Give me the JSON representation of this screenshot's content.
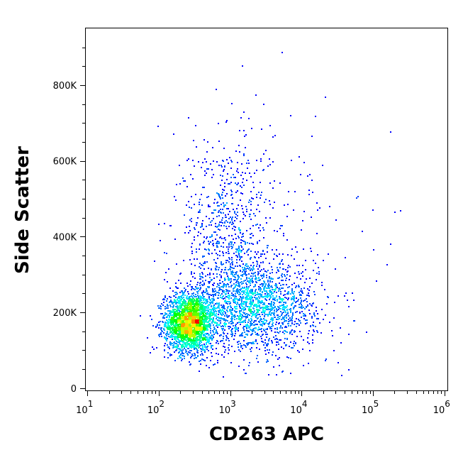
{
  "chart_data": {
    "type": "scatter",
    "style": "density-colored dot plot",
    "xlabel": "CD263 APC",
    "ylabel": "Side Scatter",
    "x_scale": "log",
    "xlim": [
      9.5,
      1100000
    ],
    "x_ticks": [
      {
        "value": 10,
        "base": "10",
        "exp": "1"
      },
      {
        "value": 100,
        "base": "10",
        "exp": "2"
      },
      {
        "value": 1000,
        "base": "10",
        "exp": "3"
      },
      {
        "value": 10000,
        "base": "10",
        "exp": "4"
      },
      {
        "value": 100000,
        "base": "10",
        "exp": "5"
      },
      {
        "value": 1000000,
        "base": "10",
        "exp": "6"
      }
    ],
    "y_scale": "linear",
    "ylim": [
      -6000,
      950000
    ],
    "y_ticks": [
      {
        "value": 0,
        "label": "0"
      },
      {
        "value": 200000,
        "label": "200K"
      },
      {
        "value": 400000,
        "label": "400K"
      },
      {
        "value": 600000,
        "label": "600K"
      },
      {
        "value": 800000,
        "label": "800K"
      }
    ],
    "populations": [
      {
        "x_center": 260,
        "y_center": 175000,
        "density": "high"
      },
      {
        "x_center": 2000,
        "y_center": 220000,
        "density": "medium"
      },
      {
        "x_center": 800,
        "y_center": 400000,
        "density": "low"
      }
    ],
    "colormap": [
      "#0000ff",
      "#00ffff",
      "#00ff00",
      "#ffff00",
      "#ff0000"
    ],
    "grid": false,
    "legend": "none"
  }
}
